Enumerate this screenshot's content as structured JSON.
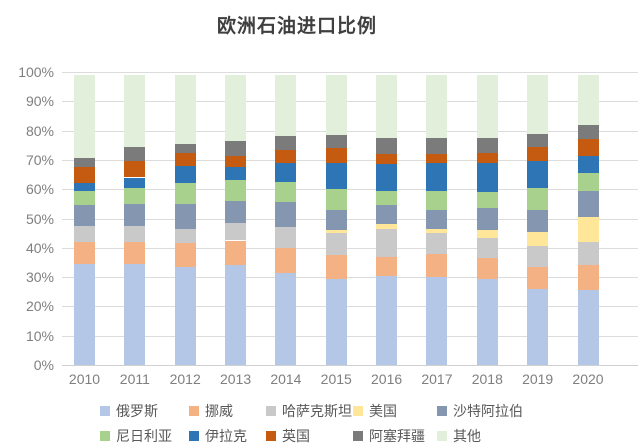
{
  "title": "欧洲石油进口比例",
  "chart_data": {
    "type": "bar",
    "variant": "stacked-column",
    "title": "欧洲石油进口比例",
    "unit": "%",
    "grid": true,
    "legend_position": "bottom",
    "ylim": [
      0,
      100
    ],
    "ytick_step": 10,
    "ytick_labels": [
      "0%",
      "10%",
      "20%",
      "30%",
      "40%",
      "50%",
      "60%",
      "70%",
      "80%",
      "90%",
      "100%"
    ],
    "categories": [
      "2010",
      "2011",
      "2012",
      "2013",
      "2014",
      "2015",
      "2016",
      "2017",
      "2018",
      "2019",
      "2020"
    ],
    "series": [
      {
        "name": "俄罗斯",
        "color": "#b4c7e7",
        "values": [
          34.5,
          34.5,
          33.5,
          34,
          31.5,
          29.5,
          30.5,
          30,
          29.5,
          26,
          25.5
        ]
      },
      {
        "name": "挪威",
        "color": "#f4b183",
        "values": [
          7.5,
          7.5,
          8,
          8.5,
          8.5,
          8,
          6.5,
          8,
          7,
          7.5,
          8.5
        ]
      },
      {
        "name": "哈萨克斯坦",
        "color": "#c9c9c9",
        "values": [
          5.5,
          5.5,
          5,
          6,
          7,
          7.5,
          9.5,
          7,
          7,
          7,
          8
        ]
      },
      {
        "name": "美国",
        "color": "#ffe699",
        "values": [
          0,
          0,
          0,
          0,
          0,
          1,
          1.5,
          1.5,
          2.5,
          5,
          8.5
        ]
      },
      {
        "name": "沙特阿拉伯",
        "color": "#8496b0",
        "values": [
          7,
          7.5,
          8.5,
          7.5,
          8.5,
          7,
          6.5,
          6.5,
          7.5,
          7.5,
          9
        ]
      },
      {
        "name": "尼日利亚",
        "color": "#a9d18e",
        "values": [
          5,
          5.5,
          7,
          7,
          7,
          7,
          5,
          6.5,
          5.5,
          7.5,
          6
        ]
      },
      {
        "name": "伊拉克",
        "color": "#2e75b6",
        "values": [
          2.5,
          3.5,
          6,
          4.5,
          6.5,
          9,
          9,
          9.5,
          10,
          9,
          6
        ]
      },
      {
        "name": "英国",
        "color": "#c55a11",
        "values": [
          5.5,
          5.5,
          4.5,
          4,
          4.5,
          5,
          3.5,
          3,
          3.5,
          5,
          5.5
        ]
      },
      {
        "name": "阿塞拜疆",
        "color": "#7b7b7b",
        "values": [
          3,
          5,
          3,
          5,
          4.5,
          4.5,
          5.5,
          5.5,
          5,
          4.5,
          5
        ]
      },
      {
        "name": "其他",
        "color": "#e2efda",
        "values": [
          28.5,
          24.5,
          23.5,
          22.5,
          21,
          20.5,
          21.5,
          21.5,
          21.5,
          20,
          17
        ]
      }
    ]
  }
}
